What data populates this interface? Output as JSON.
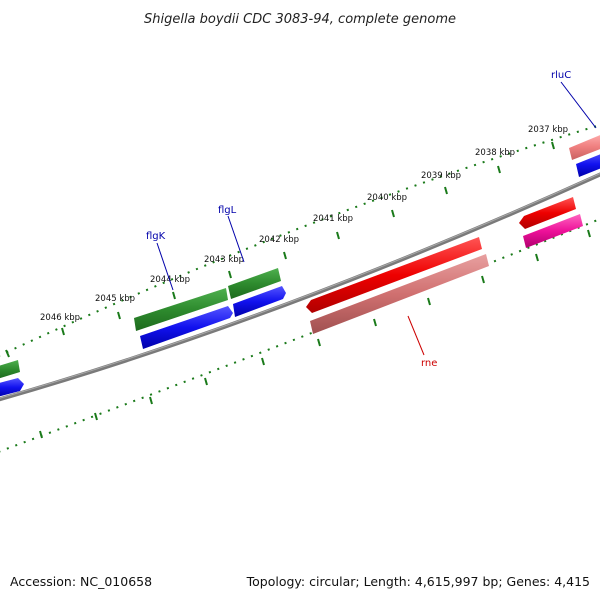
{
  "title": "Shigella boydii CDC 3083-94, complete genome",
  "footer": {
    "accession": "Accession: NC_010658",
    "stats": "Topology: circular; Length: 4,615,997 bp; Genes: 4,415"
  },
  "ticks": [
    "2037 kbp",
    "2038 kbp",
    "2039 kbp",
    "2040 kbp",
    "2041 kbp",
    "2042 kbp",
    "2043 kbp",
    "2044 kbp",
    "2045 kbp",
    "2046 kbp"
  ],
  "genes": [
    {
      "name": "rluC",
      "color": "#0000aa"
    },
    {
      "name": "flgL",
      "color": "#0000aa"
    },
    {
      "name": "flgK",
      "color": "#0000aa"
    },
    {
      "name": "rne",
      "color": "#cc0000"
    }
  ],
  "colors": {
    "backbone": "#808080",
    "cds_green": "#2e8b2e",
    "cds_blue": "#1111ee",
    "cds_red": "#ee0000",
    "cds_pink": "#f08080",
    "cds_magenta": "#ee1199",
    "tick_green": "#1a7a1a"
  }
}
